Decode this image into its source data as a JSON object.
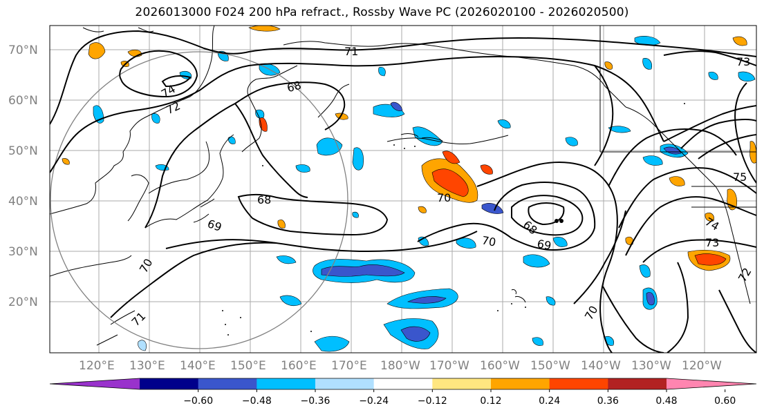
{
  "map": {
    "title": "2026013000 F024 200 hPa refract., Rossby Wave PC (2026020100 - 2026020500)",
    "lat_labels": [
      "70°N",
      "60°N",
      "50°N",
      "40°N",
      "30°N",
      "20°N"
    ],
    "lon_labels": [
      "120°E",
      "130°E",
      "140°E",
      "150°E",
      "160°E",
      "170°E",
      "180°W",
      "170°W",
      "160°W",
      "150°W",
      "140°W",
      "130°W",
      "120°W"
    ],
    "contour_labels": [
      "71",
      "74",
      "72",
      "68",
      "68",
      "70",
      "69",
      "70",
      "71",
      "68",
      "69",
      "70",
      "70",
      "73",
      "75",
      "74",
      "73",
      "72"
    ]
  },
  "colorbar": {
    "colors": [
      "#9932cc",
      "#00008b",
      "#3a56cc",
      "#00bfff",
      "#b0e0ff",
      "#ffffff",
      "#ffe680",
      "#ffa500",
      "#ff4500",
      "#b22222",
      "#ff85b0"
    ],
    "tick_labels": [
      "−0.60",
      "−0.48",
      "−0.36",
      "−0.24",
      "−0.12",
      "0.12",
      "0.24",
      "0.36",
      "0.48",
      "0.60"
    ]
  }
}
